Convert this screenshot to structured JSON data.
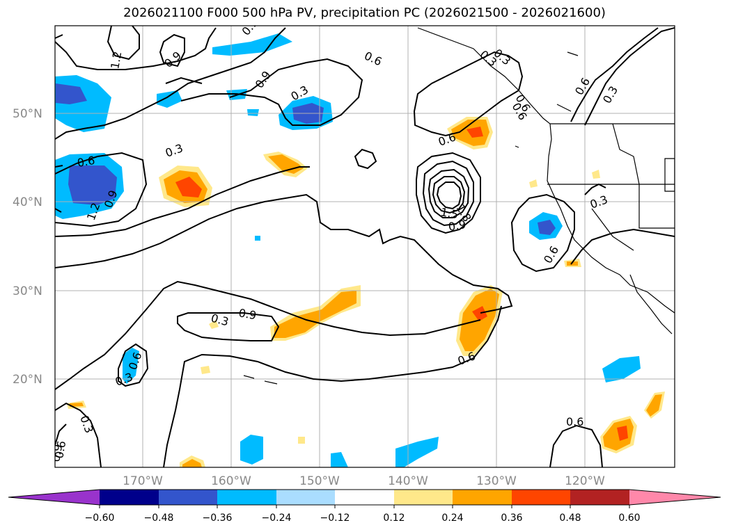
{
  "title": "2026021100 F000 500 hPa PV, precipitation PC (2026021500 - 2026021600)",
  "lat_labels": [
    "50°N",
    "40°N",
    "30°N",
    "20°N"
  ],
  "lon_labels": [
    "170°W",
    "160°W",
    "150°W",
    "140°W",
    "130°W",
    "120°W"
  ],
  "colorbar": {
    "ticks": [
      "−0.60",
      "−0.48",
      "−0.36",
      "−0.24",
      "−0.12",
      "0.12",
      "0.24",
      "0.36",
      "0.48",
      "0.60"
    ],
    "colors": [
      "#9933cc",
      "#00008b",
      "#3355cc",
      "#00bbff",
      "#aaddff",
      "#ffffff",
      "#ffe88a",
      "#ffa500",
      "#ff4500",
      "#b22222",
      "#ff88aa"
    ]
  },
  "contour_labels": [
    "1.2",
    "0.9",
    "0.9",
    "0.3",
    "0.6",
    "0.3",
    "0.6",
    "0.6",
    "0.3",
    "0.9",
    "1.5",
    "1.8",
    "0.9",
    "0.3",
    "0.6",
    "0.6",
    "1.2",
    "0.9",
    "0.3",
    "0.6",
    "0.3",
    "0.6",
    "0.3",
    "0.6",
    "0.3",
    "0.9",
    "0.6",
    "0.3",
    "0.6",
    "0.9",
    "0.6"
  ]
}
